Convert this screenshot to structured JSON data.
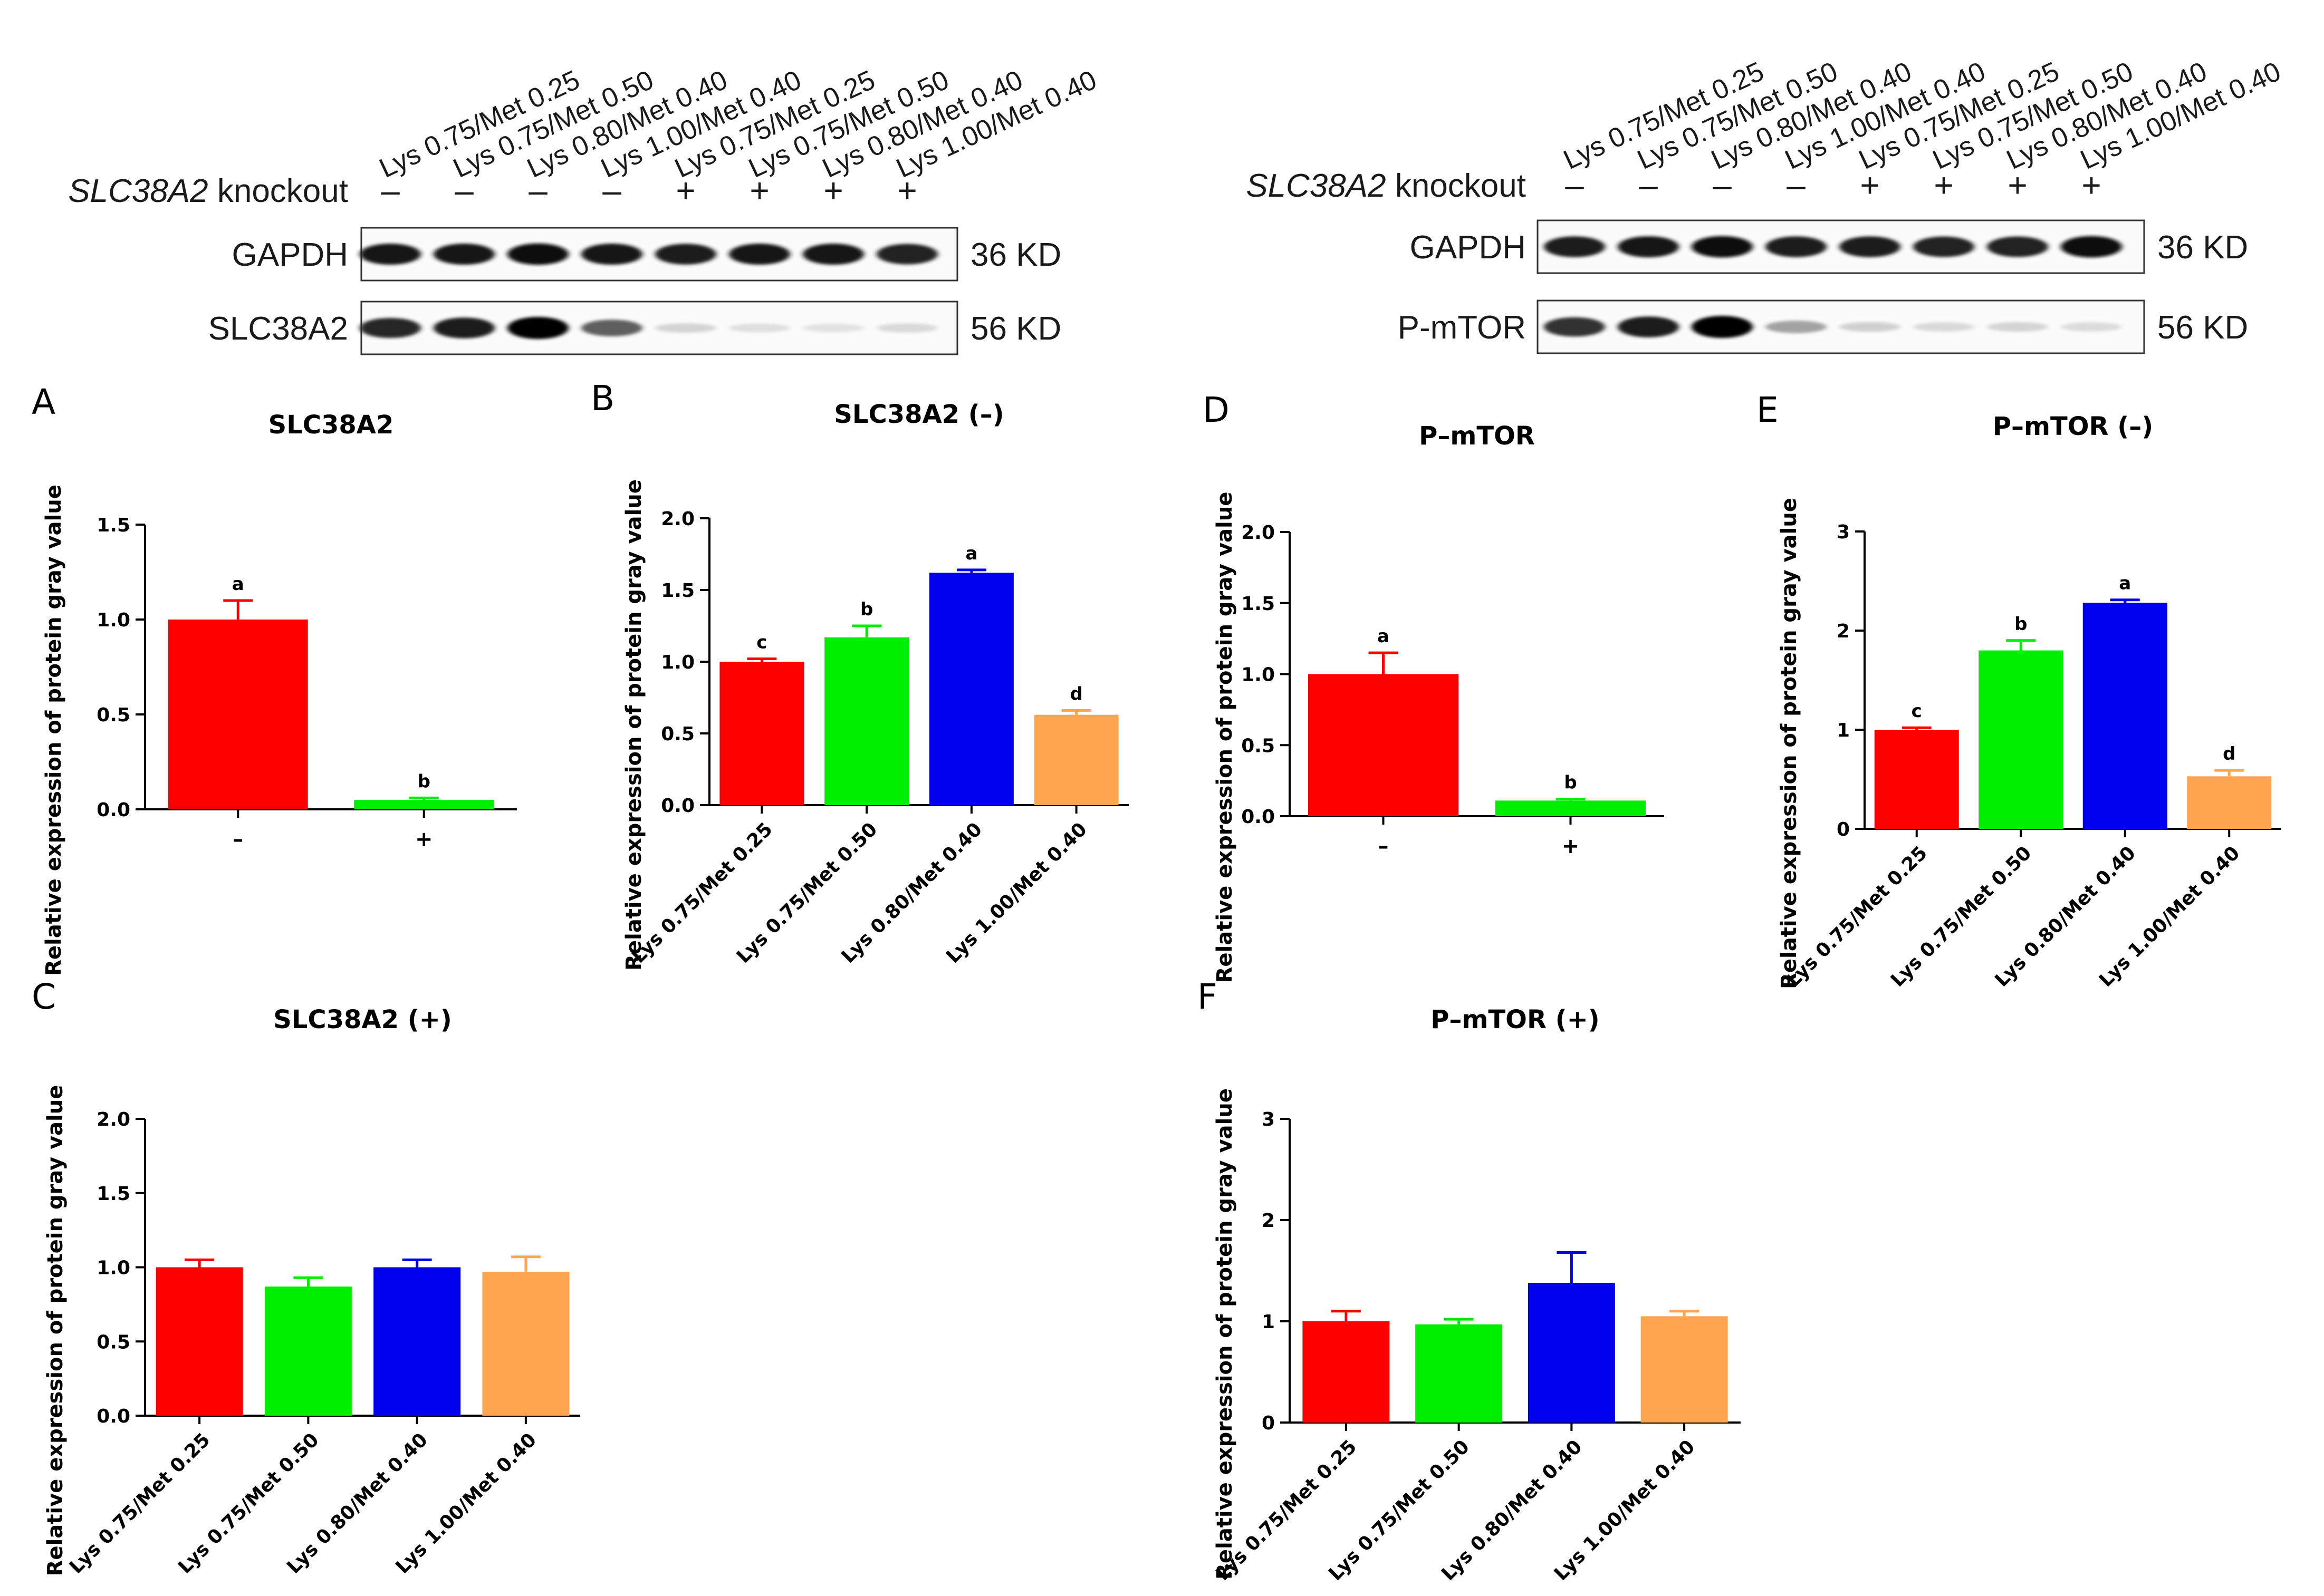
{
  "western_blots": [
    {
      "lanes": [
        "Lys 0.75/Met 0.25",
        "Lys 0.75/Met 0.50",
        "Lys 0.80/Met 0.40",
        "Lys 1.00/Met 0.40",
        "Lys 0.75/Met 0.25",
        "Lys 0.75/Met 0.50",
        "Lys 0.80/Met 0.40",
        "Lys 1.00/Met 0.40"
      ],
      "knockout_label_gene": "SLC38A2",
      "knockout_label_suffix": " knockout",
      "knockout_signs": [
        "–",
        "–",
        "–",
        "–",
        "+",
        "+",
        "+",
        "+"
      ],
      "bands": [
        {
          "protein": "GAPDH",
          "size": "36 KD",
          "intensity": [
            0.92,
            0.92,
            0.95,
            0.92,
            0.9,
            0.92,
            0.92,
            0.88
          ]
        },
        {
          "protein": "SLC38A2",
          "size": "56 KD",
          "intensity": [
            0.85,
            0.9,
            1.0,
            0.6,
            0.08,
            0.03,
            0.02,
            0.06
          ]
        }
      ]
    },
    {
      "lanes": [
        "Lys 0.75/Met 0.25",
        "Lys 0.75/Met 0.50",
        "Lys 0.80/Met 0.40",
        "Lys 1.00/Met 0.40",
        "Lys 0.75/Met 0.25",
        "Lys 0.75/Met 0.50",
        "Lys 0.80/Met 0.40",
        "Lys 1.00/Met 0.40"
      ],
      "knockout_label_gene": "SLC38A2",
      "knockout_label_suffix": " knockout",
      "knockout_signs": [
        "–",
        "–",
        "–",
        "–",
        "+",
        "+",
        "+",
        "+"
      ],
      "bands": [
        {
          "protein": "GAPDH",
          "size": "36 KD",
          "intensity": [
            0.9,
            0.92,
            0.95,
            0.9,
            0.9,
            0.88,
            0.88,
            0.95
          ]
        },
        {
          "protein": "P-mTOR",
          "size": "56 KD",
          "intensity": [
            0.8,
            0.9,
            1.0,
            0.3,
            0.1,
            0.06,
            0.08,
            0.05
          ]
        }
      ]
    }
  ],
  "colors": {
    "red": "#ff0000",
    "green": "#00ee00",
    "blue": "#0000ee",
    "orange": "#ffa54f"
  },
  "chart_data": [
    {
      "panel": "A",
      "type": "bar",
      "title": "SLC38A2",
      "ylabel": "Relative expression of protein gray value",
      "categories": [
        "–",
        "+"
      ],
      "values": [
        1.0,
        0.05
      ],
      "errors": [
        0.1,
        0.01
      ],
      "letters": [
        "a",
        "b"
      ],
      "yticks": [
        "0.0",
        "0.5",
        "1.0",
        "1.5"
      ],
      "ylim": [
        0,
        1.5
      ],
      "colors": [
        "#ff0000",
        "#00ee00"
      ]
    },
    {
      "panel": "B",
      "type": "bar",
      "title": "SLC38A2 (–)",
      "ylabel": "Relative expression of protein gray value",
      "categories": [
        "Lys 0.75/Met 0.25",
        "Lys 0.75/Met 0.50",
        "Lys 0.80/Met 0.40",
        "Lys 1.00/Met 0.40"
      ],
      "values": [
        1.0,
        1.17,
        1.62,
        0.63
      ],
      "errors": [
        0.02,
        0.08,
        0.02,
        0.03
      ],
      "letters": [
        "c",
        "b",
        "a",
        "d"
      ],
      "yticks": [
        "0.0",
        "0.5",
        "1.0",
        "1.5",
        "2.0"
      ],
      "ylim": [
        0,
        2.0
      ],
      "colors": [
        "#ff0000",
        "#00ee00",
        "#0000ee",
        "#ffa54f"
      ]
    },
    {
      "panel": "C",
      "type": "bar",
      "title": "SLC38A2 (+)",
      "ylabel": "Relative expression of protein gray value",
      "categories": [
        "Lys 0.75/Met 0.25",
        "Lys 0.75/Met 0.50",
        "Lys 0.80/Met 0.40",
        "Lys 1.00/Met 0.40"
      ],
      "values": [
        1.0,
        0.87,
        1.0,
        0.97
      ],
      "errors": [
        0.05,
        0.06,
        0.05,
        0.1
      ],
      "letters": [
        "",
        "",
        "",
        ""
      ],
      "yticks": [
        "0.0",
        "0.5",
        "1.0",
        "1.5",
        "2.0"
      ],
      "ylim": [
        0,
        2.0
      ],
      "colors": [
        "#ff0000",
        "#00ee00",
        "#0000ee",
        "#ffa54f"
      ]
    },
    {
      "panel": "D",
      "type": "bar",
      "title": "P–mTOR",
      "ylabel": "Relative expression of protein gray value",
      "categories": [
        "–",
        "+"
      ],
      "values": [
        1.0,
        0.11
      ],
      "errors": [
        0.15,
        0.01
      ],
      "letters": [
        "a",
        "b"
      ],
      "yticks": [
        "0.0",
        "0.5",
        "1.0",
        "1.5",
        "2.0"
      ],
      "ylim": [
        0,
        2.0
      ],
      "colors": [
        "#ff0000",
        "#00ee00"
      ]
    },
    {
      "panel": "E",
      "type": "bar",
      "title": "P–mTOR (–)",
      "ylabel": "Relative expression of protein gray value",
      "categories": [
        "Lys 0.75/Met 0.25",
        "Lys 0.75/Met 0.50",
        "Lys 0.80/Met 0.40",
        "Lys 1.00/Met 0.40"
      ],
      "values": [
        1.0,
        1.8,
        2.28,
        0.53
      ],
      "errors": [
        0.02,
        0.1,
        0.03,
        0.06
      ],
      "letters": [
        "c",
        "b",
        "a",
        "d"
      ],
      "yticks": [
        "0",
        "1",
        "2",
        "3"
      ],
      "ylim": [
        0,
        3
      ],
      "colors": [
        "#ff0000",
        "#00ee00",
        "#0000ee",
        "#ffa54f"
      ]
    },
    {
      "panel": "F",
      "type": "bar",
      "title": "P–mTOR (+)",
      "ylabel": "Relative expression of protein gray value",
      "categories": [
        "Lys 0.75/Met 0.25",
        "Lys 0.75/Met 0.50",
        "Lys 0.80/Met 0.40",
        "Lys 1.00/Met 0.40"
      ],
      "values": [
        1.0,
        0.97,
        1.38,
        1.05
      ],
      "errors": [
        0.1,
        0.05,
        0.3,
        0.05
      ],
      "letters": [
        "",
        "",
        "",
        ""
      ],
      "yticks": [
        "0",
        "1",
        "2",
        "3"
      ],
      "ylim": [
        0,
        3
      ],
      "colors": [
        "#ff0000",
        "#00ee00",
        "#0000ee",
        "#ffa54f"
      ]
    }
  ]
}
